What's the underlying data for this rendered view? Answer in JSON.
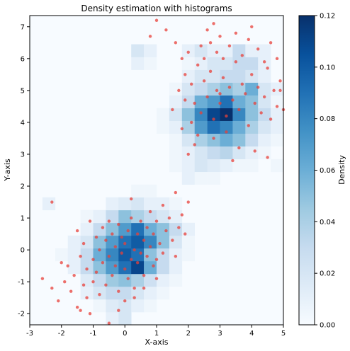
{
  "chart_data": {
    "type": "heatmap",
    "title": "Density estimation with histograms",
    "xlabel": "X-axis",
    "ylabel": "Y-axis",
    "xlim": [
      -3,
      5
    ],
    "ylim": [
      -2.35,
      7.35
    ],
    "x_ticks": [
      "-3",
      "-2",
      "-1",
      "0",
      "1",
      "2",
      "3",
      "4",
      "5"
    ],
    "y_ticks": [
      "-2",
      "-1",
      "0",
      "1",
      "2",
      "3",
      "4",
      "5",
      "6",
      "7"
    ],
    "grid": false,
    "colorbar": {
      "label": "Density",
      "range": [
        0,
        0.12
      ],
      "ticks": [
        "0.00",
        "0.02",
        "0.04",
        "0.06",
        "0.08",
        "0.10",
        "0.12"
      ],
      "colormap": "Blues"
    },
    "bins": {
      "x_edges_start": -3,
      "x_step": 0.4,
      "y_edges_start": -2.35,
      "y_step": 0.4,
      "density": [
        [
          0,
          0,
          0,
          0,
          0,
          0,
          0.01,
          0.02,
          0,
          0,
          0,
          0,
          0,
          0,
          0,
          0,
          0,
          0,
          0,
          0
        ],
        [
          0,
          0,
          0,
          0,
          0,
          0.005,
          0.015,
          0.02,
          0.01,
          0.005,
          0,
          0,
          0,
          0,
          0,
          0,
          0,
          0,
          0,
          0
        ],
        [
          0,
          0,
          0,
          0,
          0.01,
          0.02,
          0.03,
          0.03,
          0.02,
          0.01,
          0.005,
          0,
          0,
          0,
          0,
          0,
          0,
          0,
          0,
          0
        ],
        [
          0,
          0,
          0,
          0,
          0.015,
          0.03,
          0.045,
          0.05,
          0.04,
          0.025,
          0.01,
          0.005,
          0,
          0,
          0,
          0,
          0,
          0,
          0,
          0
        ],
        [
          0,
          0,
          0,
          0.01,
          0.03,
          0.05,
          0.07,
          0.09,
          0.11,
          0.06,
          0.03,
          0.01,
          0,
          0,
          0,
          0,
          0,
          0,
          0,
          0
        ],
        [
          0,
          0,
          0.005,
          0.01,
          0.03,
          0.06,
          0.08,
          0.1,
          0.09,
          0.05,
          0.03,
          0.01,
          0.005,
          0,
          0,
          0,
          0,
          0,
          0,
          0
        ],
        [
          0,
          0,
          0,
          0.01,
          0.02,
          0.05,
          0.07,
          0.09,
          0.1,
          0.08,
          0.05,
          0.02,
          0.005,
          0,
          0,
          0,
          0,
          0,
          0,
          0
        ],
        [
          0,
          0,
          0,
          0,
          0.01,
          0.03,
          0.05,
          0.07,
          0.09,
          0.06,
          0.05,
          0.03,
          0.01,
          0,
          0,
          0,
          0,
          0,
          0,
          0
        ],
        [
          0,
          0,
          0,
          0,
          0.005,
          0.01,
          0.03,
          0.05,
          0.04,
          0.03,
          0.02,
          0.01,
          0,
          0,
          0,
          0,
          0,
          0,
          0,
          0
        ],
        [
          0,
          0.01,
          0,
          0,
          0,
          0,
          0.01,
          0.015,
          0.02,
          0.01,
          0.01,
          0.005,
          0,
          0,
          0,
          0,
          0,
          0,
          0,
          0
        ],
        [
          0,
          0,
          0,
          0,
          0,
          0,
          0,
          0,
          0.005,
          0.005,
          0,
          0,
          0,
          0,
          0,
          0,
          0,
          0,
          0,
          0
        ],
        [
          0,
          0,
          0,
          0,
          0,
          0,
          0,
          0,
          0,
          0,
          0,
          0,
          0.01,
          0.005,
          0.005,
          0,
          0,
          0,
          0,
          0
        ],
        [
          0,
          0,
          0,
          0,
          0,
          0,
          0,
          0,
          0,
          0,
          0,
          0.005,
          0.01,
          0.02,
          0.015,
          0.01,
          0.005,
          0.005,
          0,
          0.005
        ],
        [
          0,
          0,
          0,
          0,
          0,
          0,
          0,
          0,
          0,
          0,
          0,
          0.005,
          0.01,
          0.02,
          0.03,
          0.035,
          0.02,
          0.01,
          0.005,
          0
        ],
        [
          0,
          0,
          0,
          0,
          0,
          0,
          0,
          0,
          0,
          0,
          0,
          0.005,
          0.02,
          0.04,
          0.05,
          0.06,
          0.05,
          0.03,
          0.01,
          0.005
        ],
        [
          0,
          0,
          0,
          0,
          0,
          0,
          0,
          0,
          0,
          0,
          0.005,
          0.01,
          0.04,
          0.07,
          0.09,
          0.08,
          0.06,
          0.04,
          0.02,
          0.01
        ],
        [
          0,
          0,
          0,
          0,
          0,
          0,
          0,
          0,
          0,
          0,
          0.005,
          0.02,
          0.05,
          0.08,
          0.11,
          0.12,
          0.08,
          0.05,
          0.03,
          0.01
        ],
        [
          0,
          0,
          0,
          0,
          0,
          0,
          0,
          0,
          0,
          0,
          0,
          0.01,
          0.03,
          0.06,
          0.07,
          0.09,
          0.06,
          0.05,
          0.02,
          0.005
        ],
        [
          0,
          0,
          0,
          0,
          0,
          0,
          0,
          0,
          0,
          0,
          0,
          0.005,
          0.02,
          0.03,
          0.04,
          0.05,
          0.04,
          0.06,
          0.02,
          0.01
        ],
        [
          0,
          0,
          0,
          0,
          0,
          0,
          0,
          0,
          0,
          0,
          0,
          0,
          0.01,
          0.02,
          0.02,
          0.03,
          0.03,
          0.02,
          0.01,
          0
        ],
        [
          0,
          0,
          0,
          0,
          0,
          0,
          0,
          0,
          0.01,
          0.005,
          0,
          0,
          0.005,
          0.01,
          0.02,
          0.02,
          0.03,
          0.03,
          0.01,
          0
        ],
        [
          0,
          0,
          0,
          0,
          0,
          0,
          0,
          0,
          0.02,
          0.01,
          0,
          0,
          0.01,
          0.02,
          0.01,
          0.01,
          0.03,
          0.01,
          0.01,
          0
        ],
        [
          0,
          0,
          0,
          0,
          0,
          0,
          0,
          0,
          0,
          0,
          0,
          0,
          0,
          0,
          0,
          0,
          0,
          0,
          0,
          0
        ],
        [
          0,
          0,
          0,
          0,
          0,
          0,
          0,
          0,
          0,
          0,
          0,
          0,
          0,
          0,
          0,
          0,
          0,
          0,
          0,
          0
        ]
      ]
    },
    "scatter": {
      "name": "",
      "color": "#e8403a",
      "points": [
        [
          -2.6,
          -0.9
        ],
        [
          -2.3,
          -1.2
        ],
        [
          -2.1,
          -1.6
        ],
        [
          -1.9,
          -1.0
        ],
        [
          -1.8,
          -0.5
        ],
        [
          -1.7,
          -1.3
        ],
        [
          -1.6,
          -0.8
        ],
        [
          -1.5,
          -1.8
        ],
        [
          -1.5,
          0.6
        ],
        [
          -1.4,
          -0.2
        ],
        [
          -1.3,
          -1.1
        ],
        [
          -1.3,
          0.2
        ],
        [
          -1.2,
          -0.6
        ],
        [
          -1.2,
          -1.5
        ],
        [
          -1.1,
          0.9
        ],
        [
          -1.0,
          -0.3
        ],
        [
          -1.0,
          -1.0
        ],
        [
          -0.9,
          0.4
        ],
        [
          -0.9,
          -0.7
        ],
        [
          -0.8,
          -1.4
        ],
        [
          -0.8,
          0.0
        ],
        [
          -0.7,
          0.7
        ],
        [
          -0.7,
          -0.4
        ],
        [
          -0.6,
          -1.1
        ],
        [
          -0.6,
          0.3
        ],
        [
          -0.5,
          -0.2
        ],
        [
          -0.5,
          0.9
        ],
        [
          -0.4,
          -0.8
        ],
        [
          -0.4,
          0.5
        ],
        [
          -0.3,
          -0.5
        ],
        [
          -0.3,
          0.1
        ],
        [
          -0.2,
          -1.3
        ],
        [
          -0.2,
          0.8
        ],
        [
          -0.1,
          -0.1
        ],
        [
          -0.1,
          0.4
        ],
        [
          0.0,
          -0.6
        ],
        [
          0.0,
          0.2
        ],
        [
          0.1,
          -0.9
        ],
        [
          0.1,
          0.6
        ],
        [
          0.2,
          -0.3
        ],
        [
          0.2,
          1.0
        ],
        [
          0.3,
          0.0
        ],
        [
          0.3,
          -1.2
        ],
        [
          0.4,
          0.5
        ],
        [
          0.4,
          -0.4
        ],
        [
          0.5,
          0.9
        ],
        [
          0.5,
          -0.1
        ],
        [
          0.6,
          0.3
        ],
        [
          0.6,
          -0.8
        ],
        [
          0.7,
          0.7
        ],
        [
          0.7,
          -0.2
        ],
        [
          0.8,
          1.2
        ],
        [
          0.8,
          0.1
        ],
        [
          0.9,
          -0.5
        ],
        [
          0.9,
          0.5
        ],
        [
          1.0,
          0.9
        ],
        [
          1.0,
          -0.3
        ],
        [
          1.1,
          0.2
        ],
        [
          1.2,
          1.4
        ],
        [
          1.2,
          -0.1
        ],
        [
          1.3,
          0.6
        ],
        [
          1.4,
          1.0
        ],
        [
          1.5,
          0.3
        ],
        [
          1.6,
          -0.2
        ],
        [
          1.7,
          0.7
        ],
        [
          1.8,
          1.1
        ],
        [
          1.9,
          0.5
        ],
        [
          2.0,
          1.5
        ],
        [
          -2.3,
          1.5
        ],
        [
          1.6,
          1.8
        ],
        [
          -0.5,
          -2.3
        ],
        [
          -0.2,
          -1.9
        ],
        [
          0.0,
          -1.6
        ],
        [
          0.3,
          -1.5
        ],
        [
          -1.4,
          -1.9
        ],
        [
          -1.1,
          -2.0
        ],
        [
          0.6,
          -1.2
        ],
        [
          1.0,
          -0.9
        ],
        [
          -2.0,
          -0.4
        ],
        [
          0.2,
          1.6
        ],
        [
          2.2,
          3.3
        ],
        [
          2.4,
          4.3
        ],
        [
          2.5,
          5.3
        ],
        [
          2.6,
          4.8
        ],
        [
          2.7,
          5.6
        ],
        [
          2.8,
          4.1
        ],
        [
          2.9,
          5.0
        ],
        [
          3.0,
          4.6
        ],
        [
          3.1,
          5.4
        ],
        [
          3.2,
          4.2
        ],
        [
          3.3,
          5.1
        ],
        [
          3.4,
          4.7
        ],
        [
          3.5,
          5.9
        ],
        [
          3.6,
          4.4
        ],
        [
          3.7,
          5.2
        ],
        [
          3.8,
          4.9
        ],
        [
          3.9,
          3.9
        ],
        [
          4.0,
          5.5
        ],
        [
          4.1,
          4.6
        ],
        [
          4.2,
          5.1
        ],
        [
          4.3,
          4.3
        ],
        [
          4.4,
          4.8
        ],
        [
          4.5,
          5.7
        ],
        [
          4.6,
          4.1
        ],
        [
          4.7,
          5.0
        ],
        [
          4.8,
          4.5
        ],
        [
          4.9,
          5.3
        ],
        [
          2.1,
          5.2
        ],
        [
          2.2,
          4.6
        ],
        [
          2.3,
          5.8
        ],
        [
          2.4,
          6.4
        ],
        [
          2.5,
          6.0
        ],
        [
          2.6,
          6.9
        ],
        [
          2.7,
          6.5
        ],
        [
          2.8,
          7.1
        ],
        [
          2.9,
          6.2
        ],
        [
          3.0,
          6.7
        ],
        [
          3.1,
          6.0
        ],
        [
          3.3,
          6.4
        ],
        [
          3.5,
          6.8
        ],
        [
          3.7,
          6.1
        ],
        [
          3.9,
          6.6
        ],
        [
          4.0,
          7.0
        ],
        [
          4.2,
          6.3
        ],
        [
          4.4,
          5.9
        ],
        [
          4.6,
          6.5
        ],
        [
          4.8,
          6.0
        ],
        [
          1.0,
          7.2
        ],
        [
          1.3,
          6.9
        ],
        [
          0.8,
          6.7
        ],
        [
          1.6,
          6.5
        ],
        [
          1.8,
          6.0
        ],
        [
          2.0,
          6.2
        ],
        [
          1.9,
          5.5
        ],
        [
          1.7,
          5.0
        ],
        [
          1.5,
          4.4
        ],
        [
          1.9,
          4.7
        ],
        [
          2.1,
          4.0
        ],
        [
          2.3,
          3.6
        ],
        [
          2.8,
          3.5
        ],
        [
          3.2,
          3.7
        ],
        [
          3.6,
          3.2
        ],
        [
          4.1,
          3.1
        ],
        [
          4.5,
          2.9
        ],
        [
          3.4,
          2.8
        ],
        [
          2.0,
          3.0
        ],
        [
          1.8,
          3.8
        ],
        [
          4.9,
          5.0
        ],
        [
          5.0,
          4.4
        ],
        [
          3.0,
          4.9
        ]
      ]
    }
  }
}
